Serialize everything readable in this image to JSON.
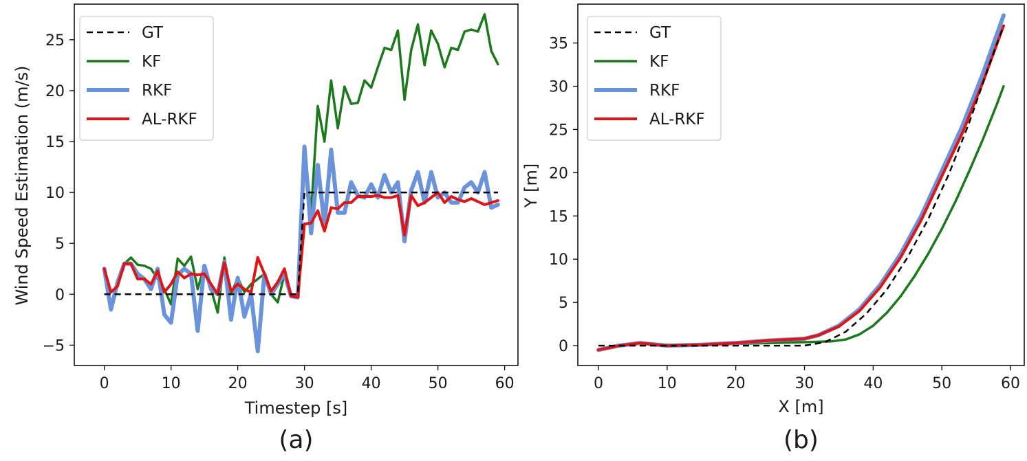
{
  "chart_data": [
    {
      "type": "line",
      "caption": "(a)",
      "xlabel": "Timestep [s]",
      "ylabel": "Wind Speed Estimation (m/s)",
      "xlim": [
        -4.5,
        62
      ],
      "ylim": [
        -7,
        28.5
      ],
      "xticks": [
        0,
        10,
        20,
        30,
        40,
        50,
        60
      ],
      "yticks": [
        -5,
        0,
        5,
        10,
        15,
        20,
        25
      ],
      "legend_position": "upper-left",
      "grid": false,
      "series": [
        {
          "name": "GT",
          "color": "#000000",
          "dash": true,
          "width": 2.5,
          "x": [
            0,
            29,
            30,
            59
          ],
          "y": [
            0,
            0,
            10,
            10
          ]
        },
        {
          "name": "KF",
          "color": "#1a7a1a",
          "width": 3.5,
          "x": [
            0,
            1,
            2,
            3,
            4,
            5,
            6,
            7,
            8,
            9,
            10,
            11,
            12,
            13,
            14,
            15,
            16,
            17,
            18,
            19,
            20,
            21,
            22,
            23,
            24,
            25,
            26,
            27,
            28,
            29,
            30,
            31,
            32,
            33,
            34,
            35,
            36,
            37,
            38,
            39,
            40,
            41,
            42,
            43,
            44,
            45,
            46,
            47,
            48,
            49,
            50,
            51,
            52,
            53,
            54,
            55,
            56,
            57,
            58,
            59
          ],
          "y": [
            2.5,
            -1.5,
            1.0,
            3.0,
            3.6,
            2.9,
            2.8,
            2.5,
            1.5,
            0.5,
            -1.0,
            3.5,
            2.8,
            3.7,
            0.5,
            2.8,
            0.5,
            -1.8,
            3.6,
            0.0,
            1.6,
            0.2,
            1.0,
            1.5,
            2.0,
            0.0,
            -0.8,
            2.0,
            -0.2,
            -0.3,
            14.5,
            8.0,
            18.5,
            15.0,
            21.0,
            16.3,
            20.4,
            18.7,
            18.8,
            21.0,
            20.3,
            22.3,
            24.2,
            24.0,
            25.9,
            19.1,
            24.0,
            26.5,
            22.5,
            25.9,
            24.6,
            22.3,
            24.2,
            24.0,
            25.8,
            26.0,
            25.8,
            27.5,
            23.9,
            22.6
          ]
        },
        {
          "name": "RKF",
          "color": "#6a93dc",
          "width": 6,
          "x": [
            0,
            1,
            2,
            3,
            4,
            5,
            6,
            7,
            8,
            9,
            10,
            11,
            12,
            13,
            14,
            15,
            16,
            17,
            18,
            19,
            20,
            21,
            22,
            23,
            24,
            25,
            26,
            27,
            28,
            29,
            30,
            31,
            32,
            33,
            34,
            35,
            36,
            37,
            38,
            39,
            40,
            41,
            42,
            43,
            44,
            45,
            46,
            47,
            48,
            49,
            50,
            51,
            52,
            53,
            54,
            55,
            56,
            57,
            58,
            59
          ],
          "y": [
            2.5,
            -1.5,
            1.2,
            3.0,
            3.0,
            2.0,
            1.5,
            0.5,
            2.5,
            -2.0,
            -2.8,
            1.9,
            2.5,
            2.0,
            -3.6,
            2.8,
            0.5,
            0.0,
            3.2,
            -2.5,
            1.6,
            -2.2,
            0.0,
            -5.6,
            2.0,
            0.0,
            1.0,
            2.0,
            -0.2,
            -0.3,
            14.5,
            6.0,
            12.7,
            6.8,
            14.2,
            8.0,
            8.0,
            11.0,
            9.7,
            9.5,
            10.8,
            9.5,
            11.7,
            10.0,
            11.0,
            5.2,
            10.2,
            12.0,
            9.0,
            12.0,
            9.5,
            10.0,
            9.0,
            9.0,
            10.5,
            11.0,
            10.0,
            12.0,
            8.5,
            8.8
          ]
        },
        {
          "name": "AL-RKF",
          "color": "#e01414",
          "width": 4,
          "x": [
            0,
            1,
            2,
            3,
            4,
            5,
            6,
            7,
            8,
            9,
            10,
            11,
            12,
            13,
            14,
            15,
            16,
            17,
            18,
            19,
            20,
            21,
            22,
            23,
            24,
            25,
            26,
            27,
            28,
            29,
            30,
            31,
            32,
            33,
            34,
            35,
            36,
            37,
            38,
            39,
            40,
            41,
            42,
            43,
            44,
            45,
            46,
            47,
            48,
            49,
            50,
            51,
            52,
            53,
            54,
            55,
            56,
            57,
            58,
            59
          ],
          "y": [
            2.5,
            0.2,
            0.8,
            3.0,
            3.0,
            1.5,
            1.5,
            1.0,
            2.3,
            0.2,
            1.0,
            2.2,
            1.6,
            2.0,
            1.9,
            2.0,
            1.0,
            0.0,
            3.1,
            0.3,
            1.0,
            0.5,
            0.2,
            3.6,
            2.0,
            0.3,
            1.2,
            2.5,
            -0.2,
            -0.3,
            6.9,
            7.0,
            8.2,
            6.2,
            8.5,
            8.4,
            9.0,
            9.0,
            9.6,
            9.6,
            9.6,
            9.7,
            9.5,
            9.5,
            9.7,
            5.8,
            9.7,
            8.7,
            9.0,
            9.5,
            10.0,
            9.0,
            9.6,
            9.3,
            9.1,
            9.4,
            9.1,
            8.8,
            9.0,
            9.2
          ]
        }
      ]
    },
    {
      "type": "line",
      "caption": "(b)",
      "xlabel": "X [m]",
      "ylabel": "Y [m]",
      "xlim": [
        -3,
        62
      ],
      "ylim": [
        -2.3,
        39.5
      ],
      "xticks": [
        0,
        10,
        20,
        30,
        40,
        50,
        60
      ],
      "yticks": [
        0,
        5,
        10,
        15,
        20,
        25,
        30,
        35
      ],
      "legend_position": "upper-left",
      "grid": false,
      "series": [
        {
          "name": "GT",
          "color": "#000000",
          "dash": true,
          "width": 2.5,
          "x": [
            0,
            10,
            20,
            30,
            33,
            36,
            39,
            42,
            45,
            48,
            51,
            54,
            57,
            59
          ],
          "y": [
            0,
            0,
            0,
            0,
            0.4,
            1.6,
            3.7,
            6.5,
            10.2,
            14.6,
            19.8,
            25.8,
            32.7,
            37.0
          ]
        },
        {
          "name": "KF",
          "color": "#1a7a1a",
          "width": 3.5,
          "x": [
            0,
            3,
            6,
            10,
            15,
            20,
            25,
            30,
            34,
            36,
            38,
            40,
            42,
            44,
            46,
            48,
            50,
            52,
            54,
            56,
            58,
            59
          ],
          "y": [
            -0.5,
            0.0,
            0.3,
            0.0,
            0.1,
            0.2,
            0.3,
            0.4,
            0.5,
            0.7,
            1.3,
            2.3,
            3.8,
            5.7,
            8.0,
            10.6,
            13.5,
            16.7,
            20.2,
            23.9,
            27.9,
            30.0
          ]
        },
        {
          "name": "RKF",
          "color": "#6a93dc",
          "width": 6,
          "x": [
            0,
            3,
            6,
            10,
            15,
            20,
            25,
            30,
            32,
            35,
            38,
            41,
            44,
            47,
            50,
            53,
            56,
            59
          ],
          "y": [
            -0.5,
            0.0,
            0.3,
            0.0,
            0.1,
            0.3,
            0.6,
            0.8,
            1.2,
            2.3,
            4.2,
            7.0,
            10.6,
            15.0,
            20.2,
            25.4,
            31.5,
            38.2
          ]
        },
        {
          "name": "AL-RKF",
          "color": "#e01414",
          "width": 4,
          "x": [
            0,
            3,
            6,
            10,
            15,
            20,
            25,
            30,
            32,
            35,
            38,
            41,
            44,
            47,
            50,
            53,
            56,
            59
          ],
          "y": [
            -0.5,
            0.0,
            0.3,
            0.0,
            0.1,
            0.3,
            0.6,
            0.8,
            1.2,
            2.2,
            4.0,
            6.7,
            10.2,
            14.5,
            19.6,
            24.6,
            30.5,
            37.0
          ]
        }
      ]
    }
  ]
}
